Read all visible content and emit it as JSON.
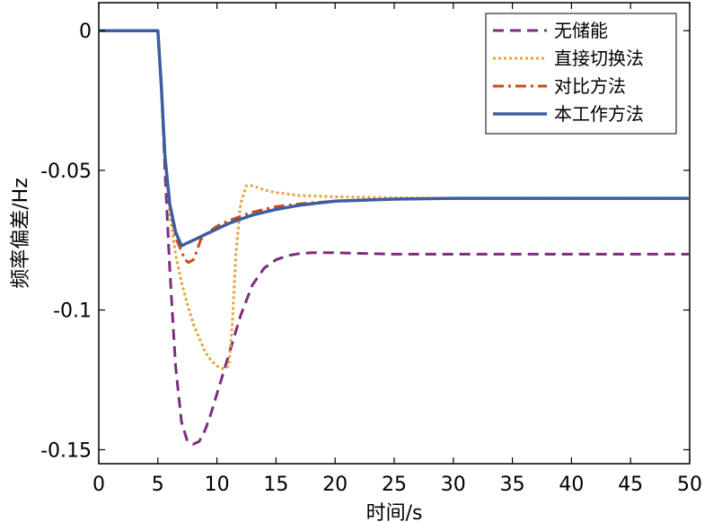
{
  "chart_data": {
    "type": "line",
    "xlabel": "时间/s",
    "ylabel": "频率偏差/Hz",
    "xlim": [
      0,
      50
    ],
    "ylim": [
      -0.155,
      0.01
    ],
    "xticks": [
      0,
      5,
      10,
      15,
      20,
      25,
      30,
      35,
      40,
      45,
      50
    ],
    "yticks": [
      0,
      -0.05,
      -0.1,
      -0.15
    ],
    "ytick_labels": [
      "0",
      "-0.05",
      "-0.1",
      "-0.15"
    ],
    "grid": false,
    "legend_position": "top-right",
    "series": [
      {
        "name": "无储能",
        "color": "#7b2d7e",
        "dash": "dashed",
        "x": [
          0,
          5,
          5.3,
          5.6,
          6,
          6.5,
          7,
          7.5,
          8,
          8.5,
          9,
          9.5,
          10,
          11,
          12,
          13,
          14,
          15,
          16,
          17,
          18,
          20,
          25,
          30,
          40,
          50
        ],
        "y": [
          0,
          0,
          -0.02,
          -0.05,
          -0.085,
          -0.12,
          -0.14,
          -0.147,
          -0.148,
          -0.147,
          -0.143,
          -0.137,
          -0.13,
          -0.116,
          -0.102,
          -0.091,
          -0.085,
          -0.082,
          -0.0805,
          -0.0798,
          -0.0795,
          -0.0795,
          -0.08,
          -0.08,
          -0.08,
          -0.08
        ]
      },
      {
        "name": "直接切换法",
        "color": "#e8a23a",
        "dash": "dotted",
        "x": [
          0,
          5,
          5.3,
          5.6,
          6,
          6.5,
          7,
          7.5,
          8,
          8.5,
          9,
          9.5,
          10,
          10.5,
          11,
          11.3,
          11.6,
          12,
          12.5,
          13,
          14,
          15,
          17,
          20,
          25,
          30,
          40,
          50
        ],
        "y": [
          0,
          0,
          -0.02,
          -0.045,
          -0.065,
          -0.08,
          -0.09,
          -0.098,
          -0.105,
          -0.11,
          -0.115,
          -0.118,
          -0.12,
          -0.121,
          -0.12,
          -0.105,
          -0.08,
          -0.062,
          -0.0555,
          -0.0555,
          -0.057,
          -0.058,
          -0.059,
          -0.0595,
          -0.0598,
          -0.06,
          -0.06,
          -0.06
        ]
      },
      {
        "name": "对比方法",
        "color": "#cc4a1a",
        "dash": "dashdot",
        "x": [
          0,
          5,
          5.3,
          5.6,
          6,
          6.5,
          7,
          7.3,
          7.6,
          8,
          8.3,
          8.6,
          9,
          10,
          11,
          12,
          13,
          14,
          15,
          17,
          20,
          25,
          30,
          40,
          50
        ],
        "y": [
          0,
          0,
          -0.02,
          -0.045,
          -0.062,
          -0.074,
          -0.079,
          -0.082,
          -0.083,
          -0.082,
          -0.079,
          -0.075,
          -0.073,
          -0.07,
          -0.068,
          -0.0665,
          -0.065,
          -0.064,
          -0.063,
          -0.062,
          -0.061,
          -0.0603,
          -0.06,
          -0.06,
          -0.06
        ]
      },
      {
        "name": "本工作方法",
        "color": "#3b5ea3",
        "dash": "solid",
        "x": [
          0,
          5,
          5.3,
          5.6,
          6,
          6.5,
          7,
          7.5,
          8,
          8.5,
          9,
          10,
          11,
          12,
          13,
          14,
          15,
          17,
          20,
          25,
          30,
          40,
          50
        ],
        "y": [
          0,
          0,
          -0.02,
          -0.045,
          -0.062,
          -0.072,
          -0.077,
          -0.076,
          -0.075,
          -0.074,
          -0.073,
          -0.071,
          -0.069,
          -0.0675,
          -0.066,
          -0.065,
          -0.064,
          -0.0625,
          -0.061,
          -0.0603,
          -0.06,
          -0.06,
          -0.06
        ]
      }
    ]
  }
}
